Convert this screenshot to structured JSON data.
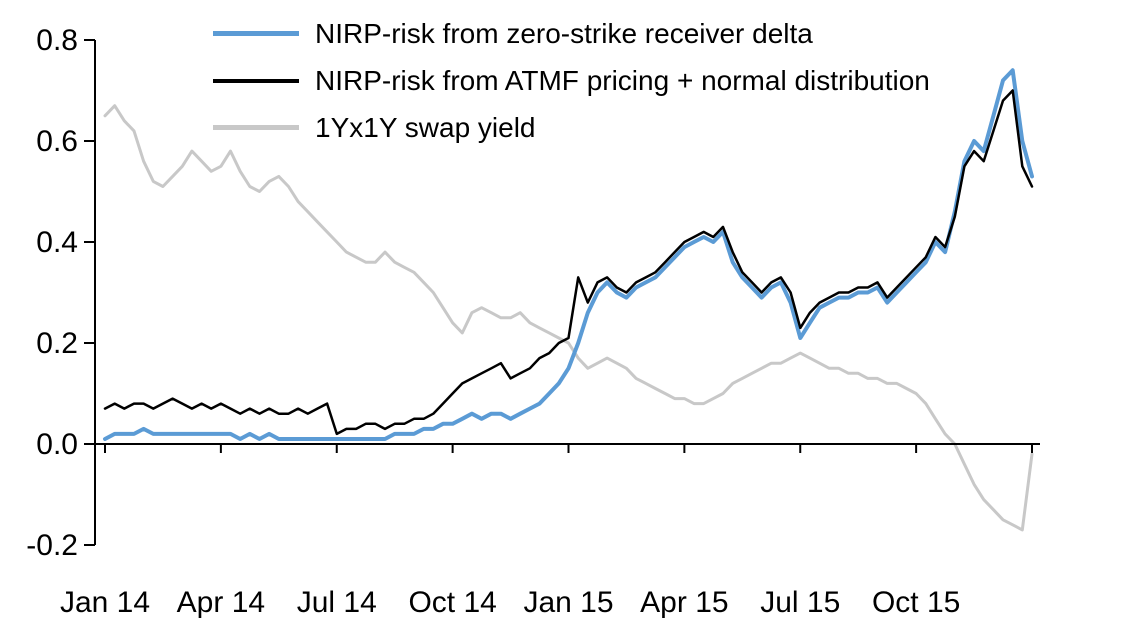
{
  "chart_data": {
    "type": "line",
    "title": "",
    "xlabel": "",
    "ylabel": "",
    "ylim": [
      -0.2,
      0.8
    ],
    "xlim": [
      0,
      24
    ],
    "grid": false,
    "legend_position": "top-left-inside",
    "axis_color": "#000000",
    "x_axis": {
      "start": 0,
      "step": 0.25,
      "unit": "months since Jan 2014"
    },
    "x_ticks": [
      {
        "t": 0,
        "label": "Jan 14"
      },
      {
        "t": 3,
        "label": "Apr 14"
      },
      {
        "t": 6,
        "label": "Jul 14"
      },
      {
        "t": 9,
        "label": "Oct 14"
      },
      {
        "t": 12,
        "label": "Jan 15"
      },
      {
        "t": 15,
        "label": "Apr 15"
      },
      {
        "t": 18,
        "label": "Jul 15"
      },
      {
        "t": 21,
        "label": "Oct 15"
      },
      {
        "t": 24,
        "label": ""
      }
    ],
    "y_ticks": [
      {
        "v": -0.2,
        "label": "-0.2"
      },
      {
        "v": 0.0,
        "label": "0.0"
      },
      {
        "v": 0.2,
        "label": "0.2"
      },
      {
        "v": 0.4,
        "label": "0.4"
      },
      {
        "v": 0.6,
        "label": "0.6"
      },
      {
        "v": 0.8,
        "label": "0.8"
      }
    ],
    "series": [
      {
        "name": "NIRP-risk from zero-strike receiver delta",
        "color": "#5b9bd5",
        "width": 4,
        "values": [
          0.01,
          0.02,
          0.02,
          0.02,
          0.03,
          0.02,
          0.02,
          0.02,
          0.02,
          0.02,
          0.02,
          0.02,
          0.02,
          0.02,
          0.01,
          0.02,
          0.01,
          0.02,
          0.01,
          0.01,
          0.01,
          0.01,
          0.01,
          0.01,
          0.01,
          0.01,
          0.01,
          0.01,
          0.01,
          0.01,
          0.02,
          0.02,
          0.02,
          0.03,
          0.03,
          0.04,
          0.04,
          0.05,
          0.06,
          0.05,
          0.06,
          0.06,
          0.05,
          0.06,
          0.07,
          0.08,
          0.1,
          0.12,
          0.15,
          0.2,
          0.26,
          0.3,
          0.32,
          0.3,
          0.29,
          0.31,
          0.32,
          0.33,
          0.35,
          0.37,
          0.39,
          0.4,
          0.41,
          0.4,
          0.42,
          0.36,
          0.33,
          0.31,
          0.29,
          0.31,
          0.32,
          0.28,
          0.21,
          0.24,
          0.27,
          0.28,
          0.29,
          0.29,
          0.3,
          0.3,
          0.31,
          0.28,
          0.3,
          0.32,
          0.34,
          0.36,
          0.4,
          0.38,
          0.46,
          0.56,
          0.6,
          0.58,
          0.65,
          0.72,
          0.74,
          0.6,
          0.53
        ]
      },
      {
        "name": "NIRP-risk from ATMF pricing + normal distribution",
        "color": "#000000",
        "width": 2.5,
        "values": [
          0.07,
          0.08,
          0.07,
          0.08,
          0.08,
          0.07,
          0.08,
          0.09,
          0.08,
          0.07,
          0.08,
          0.07,
          0.08,
          0.07,
          0.06,
          0.07,
          0.06,
          0.07,
          0.06,
          0.06,
          0.07,
          0.06,
          0.07,
          0.08,
          0.02,
          0.03,
          0.03,
          0.04,
          0.04,
          0.03,
          0.04,
          0.04,
          0.05,
          0.05,
          0.06,
          0.08,
          0.1,
          0.12,
          0.13,
          0.14,
          0.15,
          0.16,
          0.13,
          0.14,
          0.15,
          0.17,
          0.18,
          0.2,
          0.21,
          0.33,
          0.28,
          0.32,
          0.33,
          0.31,
          0.3,
          0.32,
          0.33,
          0.34,
          0.36,
          0.38,
          0.4,
          0.41,
          0.42,
          0.41,
          0.43,
          0.38,
          0.34,
          0.32,
          0.3,
          0.32,
          0.33,
          0.3,
          0.23,
          0.26,
          0.28,
          0.29,
          0.3,
          0.3,
          0.31,
          0.31,
          0.32,
          0.29,
          0.31,
          0.33,
          0.35,
          0.37,
          0.41,
          0.39,
          0.45,
          0.55,
          0.58,
          0.56,
          0.62,
          0.68,
          0.7,
          0.55,
          0.51
        ]
      },
      {
        "name": "1Yx1Y swap yield",
        "color": "#c8c8c8",
        "width": 3,
        "values": [
          0.65,
          0.67,
          0.64,
          0.62,
          0.56,
          0.52,
          0.51,
          0.53,
          0.55,
          0.58,
          0.56,
          0.54,
          0.55,
          0.58,
          0.54,
          0.51,
          0.5,
          0.52,
          0.53,
          0.51,
          0.48,
          0.46,
          0.44,
          0.42,
          0.4,
          0.38,
          0.37,
          0.36,
          0.36,
          0.38,
          0.36,
          0.35,
          0.34,
          0.32,
          0.3,
          0.27,
          0.24,
          0.22,
          0.26,
          0.27,
          0.26,
          0.25,
          0.25,
          0.26,
          0.24,
          0.23,
          0.22,
          0.21,
          0.2,
          0.17,
          0.15,
          0.16,
          0.17,
          0.16,
          0.15,
          0.13,
          0.12,
          0.11,
          0.1,
          0.09,
          0.09,
          0.08,
          0.08,
          0.09,
          0.1,
          0.12,
          0.13,
          0.14,
          0.15,
          0.16,
          0.16,
          0.17,
          0.18,
          0.17,
          0.16,
          0.15,
          0.15,
          0.14,
          0.14,
          0.13,
          0.13,
          0.12,
          0.12,
          0.11,
          0.1,
          0.08,
          0.05,
          0.02,
          0.0,
          -0.04,
          -0.08,
          -0.11,
          -0.13,
          -0.15,
          -0.16,
          -0.17,
          -0.02
        ]
      }
    ]
  }
}
